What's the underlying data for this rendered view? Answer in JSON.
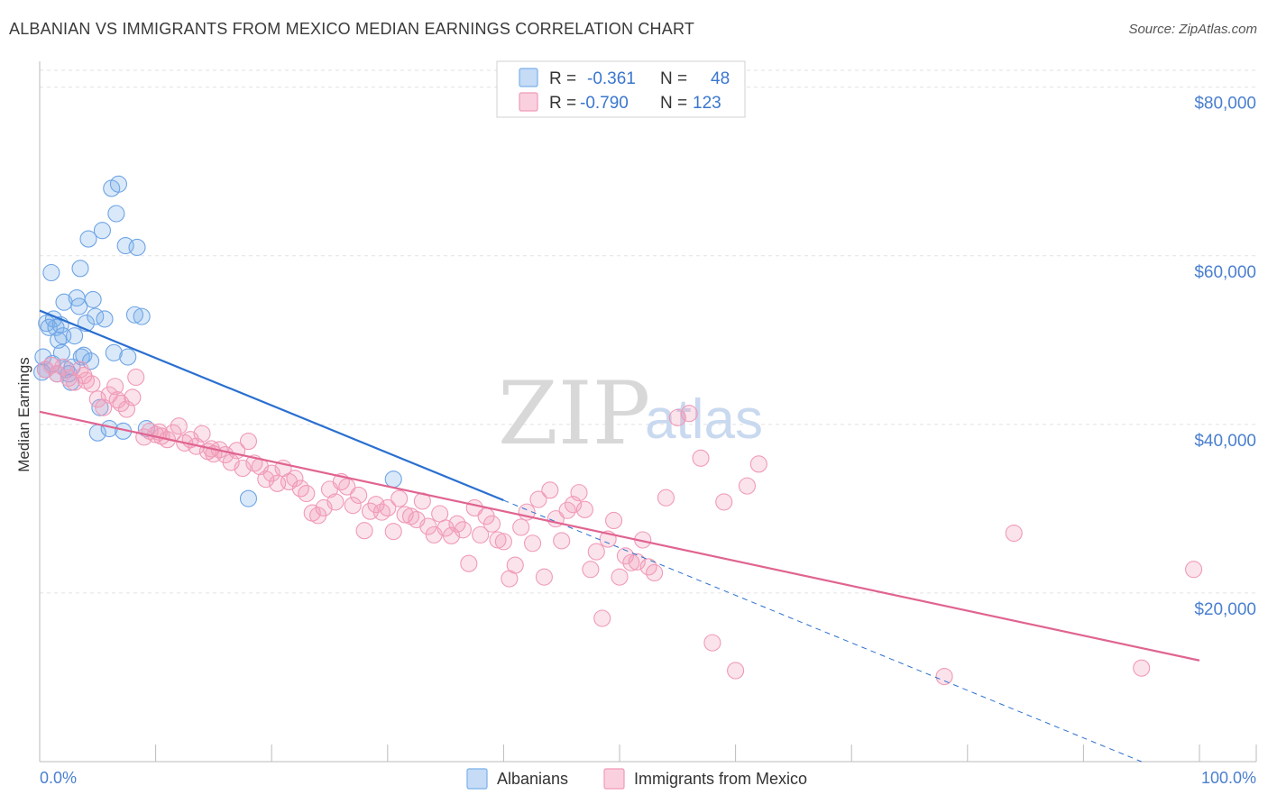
{
  "header": {
    "title": "ALBANIAN VS IMMIGRANTS FROM MEXICO MEDIAN EARNINGS CORRELATION CHART",
    "source": "Source: ZipAtlas.com"
  },
  "watermark": {
    "zip": "ZIP",
    "atlas": "atlas"
  },
  "legend": {
    "rows": [
      {
        "r_label": "R =",
        "r_value": "-0.361",
        "n_label": "N =",
        "n_value": "48",
        "color": "#7ab0ea"
      },
      {
        "r_label": "R =",
        "r_value": "-0.790",
        "n_label": "N =",
        "n_value": "123",
        "color": "#f09ab8"
      }
    ]
  },
  "bottom_legend": {
    "items": [
      {
        "label": "Albanians",
        "color": "#7ab0ea"
      },
      {
        "label": "Immigrants from Mexico",
        "color": "#f09ab8"
      }
    ]
  },
  "chart_data": {
    "type": "scatter",
    "title": "ALBANIAN VS IMMIGRANTS FROM MEXICO MEDIAN EARNINGS CORRELATION CHART",
    "xlabel": "",
    "ylabel": "Median Earnings",
    "xlim": [
      0,
      105
    ],
    "ylim": [
      0,
      82000
    ],
    "x_tick_labels": [
      "0.0%",
      "100.0%"
    ],
    "y_ticks": [
      20000,
      40000,
      60000,
      80000
    ],
    "y_tick_labels": [
      "$20,000",
      "$40,000",
      "$60,000",
      "$80,000"
    ],
    "grid": true,
    "legend_position": "top-center",
    "series": [
      {
        "name": "Albanians",
        "color": "#6ea4e6",
        "line_color": "#2a6fd0",
        "r": -0.361,
        "n": 48,
        "trend": {
          "x0": 0,
          "y0": 53500,
          "x1": 40,
          "y1": 31000,
          "dash_to_x": 95,
          "dash_to_y": 0
        },
        "points": [
          [
            0.3,
            48000
          ],
          [
            0.5,
            46500
          ],
          [
            0.6,
            52000
          ],
          [
            0.8,
            51500
          ],
          [
            1.0,
            58000
          ],
          [
            1.2,
            52500
          ],
          [
            1.4,
            51500
          ],
          [
            1.6,
            50000
          ],
          [
            1.8,
            51800
          ],
          [
            1.9,
            48500
          ],
          [
            2.0,
            50500
          ],
          [
            2.1,
            54500
          ],
          [
            2.3,
            46500
          ],
          [
            2.5,
            46000
          ],
          [
            2.7,
            45000
          ],
          [
            3.0,
            50500
          ],
          [
            3.2,
            55000
          ],
          [
            3.4,
            54000
          ],
          [
            3.5,
            58500
          ],
          [
            3.6,
            48000
          ],
          [
            3.8,
            48200
          ],
          [
            4.0,
            52000
          ],
          [
            4.2,
            62000
          ],
          [
            4.4,
            47500
          ],
          [
            4.6,
            54800
          ],
          [
            4.8,
            52800
          ],
          [
            5.0,
            39000
          ],
          [
            5.2,
            42000
          ],
          [
            5.4,
            63000
          ],
          [
            5.6,
            52500
          ],
          [
            6.0,
            39500
          ],
          [
            6.2,
            68000
          ],
          [
            6.4,
            48500
          ],
          [
            6.6,
            65000
          ],
          [
            6.8,
            68500
          ],
          [
            7.2,
            39200
          ],
          [
            7.4,
            61200
          ],
          [
            7.6,
            48000
          ],
          [
            8.2,
            53000
          ],
          [
            8.4,
            61000
          ],
          [
            8.8,
            52800
          ],
          [
            9.2,
            39500
          ],
          [
            18.0,
            31200
          ],
          [
            30.5,
            33500
          ],
          [
            1.5,
            46000
          ],
          [
            2.8,
            46800
          ],
          [
            1.1,
            47200
          ],
          [
            0.2,
            46200
          ]
        ]
      },
      {
        "name": "Immigrants from Mexico",
        "color": "#f09ab8",
        "line_color": "#e06490",
        "r": -0.79,
        "n": 123,
        "trend": {
          "x0": 0,
          "y0": 41500,
          "x1": 100,
          "y1": 12000
        },
        "points": [
          [
            0.5,
            46500
          ],
          [
            1.0,
            47000
          ],
          [
            1.5,
            46000
          ],
          [
            2.0,
            46800
          ],
          [
            2.5,
            45500
          ],
          [
            3.0,
            45000
          ],
          [
            3.5,
            46500
          ],
          [
            4.0,
            45200
          ],
          [
            4.5,
            44800
          ],
          [
            5.0,
            43000
          ],
          [
            5.5,
            42000
          ],
          [
            6.0,
            43500
          ],
          [
            6.5,
            44500
          ],
          [
            7.0,
            42500
          ],
          [
            7.5,
            41800
          ],
          [
            8.0,
            43200
          ],
          [
            8.3,
            45600
          ],
          [
            9.0,
            38500
          ],
          [
            9.5,
            39200
          ],
          [
            10.0,
            38800
          ],
          [
            10.5,
            38600
          ],
          [
            11.0,
            38200
          ],
          [
            11.5,
            39000
          ],
          [
            12.0,
            39800
          ],
          [
            12.5,
            37800
          ],
          [
            13.0,
            38200
          ],
          [
            13.5,
            37400
          ],
          [
            14.0,
            38900
          ],
          [
            14.5,
            36800
          ],
          [
            15.0,
            36500
          ],
          [
            15.5,
            37000
          ],
          [
            16.0,
            36400
          ],
          [
            16.5,
            35500
          ],
          [
            17.0,
            36900
          ],
          [
            17.5,
            34800
          ],
          [
            18.0,
            38000
          ],
          [
            18.5,
            35400
          ],
          [
            19.0,
            35000
          ],
          [
            19.5,
            33500
          ],
          [
            20.0,
            34200
          ],
          [
            20.5,
            33000
          ],
          [
            21.0,
            34800
          ],
          [
            21.5,
            33200
          ],
          [
            22.0,
            33600
          ],
          [
            22.5,
            32400
          ],
          [
            23.0,
            31800
          ],
          [
            23.5,
            29500
          ],
          [
            24.0,
            29200
          ],
          [
            24.5,
            30100
          ],
          [
            25.0,
            32300
          ],
          [
            25.5,
            30800
          ],
          [
            26.0,
            33200
          ],
          [
            26.5,
            32600
          ],
          [
            27.0,
            30400
          ],
          [
            27.5,
            31600
          ],
          [
            28.0,
            27400
          ],
          [
            28.5,
            29700
          ],
          [
            29.0,
            30500
          ],
          [
            29.5,
            29600
          ],
          [
            30.0,
            30100
          ],
          [
            30.5,
            27300
          ],
          [
            31.0,
            31200
          ],
          [
            31.5,
            29300
          ],
          [
            32.0,
            29100
          ],
          [
            32.5,
            28700
          ],
          [
            33.0,
            30900
          ],
          [
            33.5,
            27900
          ],
          [
            34.0,
            26900
          ],
          [
            34.5,
            29400
          ],
          [
            35.0,
            27700
          ],
          [
            35.5,
            26800
          ],
          [
            36.0,
            28200
          ],
          [
            36.5,
            27500
          ],
          [
            37.0,
            23500
          ],
          [
            37.5,
            30100
          ],
          [
            38.0,
            26900
          ],
          [
            38.5,
            29100
          ],
          [
            39.0,
            28200
          ],
          [
            39.5,
            26300
          ],
          [
            40.0,
            26100
          ],
          [
            40.5,
            21700
          ],
          [
            41.0,
            23300
          ],
          [
            41.5,
            27800
          ],
          [
            42.0,
            29600
          ],
          [
            42.5,
            25900
          ],
          [
            43.0,
            31100
          ],
          [
            43.5,
            21900
          ],
          [
            44.0,
            32200
          ],
          [
            44.5,
            28800
          ],
          [
            45.0,
            26200
          ],
          [
            45.5,
            29800
          ],
          [
            46.0,
            30500
          ],
          [
            46.5,
            31900
          ],
          [
            47.0,
            29900
          ],
          [
            47.5,
            22800
          ],
          [
            48.0,
            24900
          ],
          [
            48.5,
            17000
          ],
          [
            49.0,
            26400
          ],
          [
            49.5,
            28600
          ],
          [
            50.0,
            21900
          ],
          [
            50.5,
            24400
          ],
          [
            51.0,
            23600
          ],
          [
            51.5,
            23700
          ],
          [
            52.0,
            26300
          ],
          [
            52.5,
            23100
          ],
          [
            53.0,
            22400
          ],
          [
            54.0,
            31300
          ],
          [
            55.0,
            40800
          ],
          [
            56.0,
            41300
          ],
          [
            57.0,
            36000
          ],
          [
            58.0,
            14100
          ],
          [
            59.0,
            30800
          ],
          [
            60.0,
            10800
          ],
          [
            61.0,
            32700
          ],
          [
            62.0,
            35300
          ],
          [
            78.0,
            10100
          ],
          [
            84.0,
            27100
          ],
          [
            95.0,
            11100
          ],
          [
            99.5,
            22800
          ],
          [
            3.8,
            45800
          ],
          [
            6.7,
            42900
          ],
          [
            10.3,
            39100
          ],
          [
            14.8,
            37100
          ]
        ]
      }
    ]
  }
}
